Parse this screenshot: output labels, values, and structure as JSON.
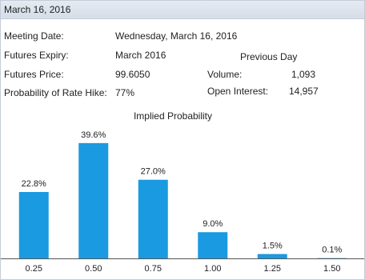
{
  "header": {
    "title": "March 16, 2016"
  },
  "fields": [
    {
      "label": "Meeting Date:",
      "value": "Wednesday, March 16, 2016"
    },
    {
      "label": "Futures Expiry:",
      "value": "March 2016"
    },
    {
      "label": "Futures Price:",
      "value": "99.6050"
    },
    {
      "label": "Probability of Rate Hike:",
      "value": "77%"
    }
  ],
  "previous_day": {
    "title": "Previous Day",
    "fields": [
      {
        "label": "Volume:",
        "value": "1,093"
      },
      {
        "label": "Open Interest:",
        "value": "14,957"
      }
    ]
  },
  "chart_data": {
    "type": "bar",
    "title": "Implied Probability",
    "categories": [
      "0.25",
      "0.50",
      "0.75",
      "1.00",
      "1.25",
      "1.50"
    ],
    "values": [
      22.8,
      39.6,
      27.0,
      9.0,
      1.5,
      0.1
    ],
    "value_labels": [
      "22.8%",
      "39.6%",
      "27.0%",
      "9.0%",
      "1.5%",
      "0.1%"
    ],
    "color": "#1a9ae0"
  }
}
